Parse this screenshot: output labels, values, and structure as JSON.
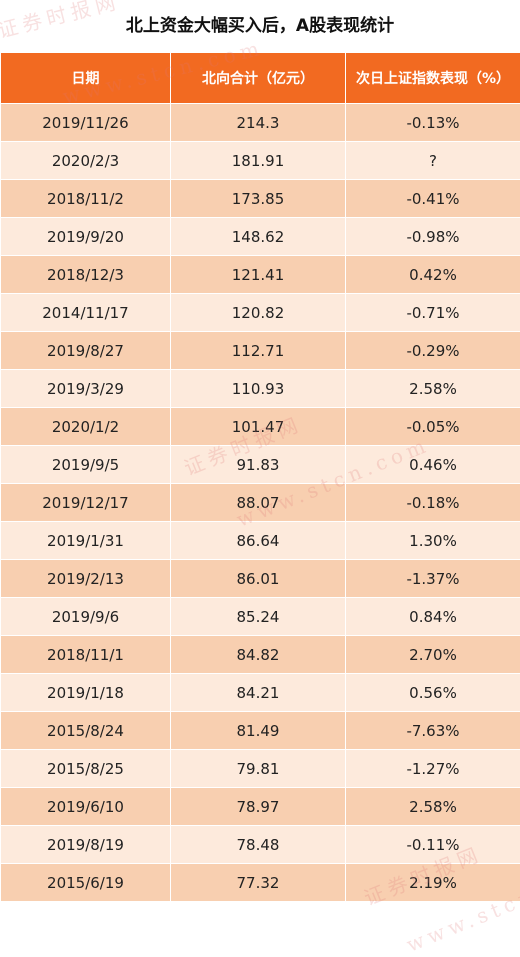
{
  "chart_data": {
    "type": "table",
    "title": "北上资金大幅买入后，A股表现统计",
    "columns": [
      "日期",
      "北向合计（亿元）",
      "次日上证指数表现（%）"
    ],
    "rows": [
      [
        "2019/11/26",
        "214.3",
        "-0.13%"
      ],
      [
        "2020/2/3",
        "181.91",
        "?"
      ],
      [
        "2018/11/2",
        "173.85",
        "-0.41%"
      ],
      [
        "2019/9/20",
        "148.62",
        "-0.98%"
      ],
      [
        "2018/12/3",
        "121.41",
        "0.42%"
      ],
      [
        "2014/11/17",
        "120.82",
        "-0.71%"
      ],
      [
        "2019/8/27",
        "112.71",
        "-0.29%"
      ],
      [
        "2019/3/29",
        "110.93",
        "2.58%"
      ],
      [
        "2020/1/2",
        "101.47",
        "-0.05%"
      ],
      [
        "2019/9/5",
        "91.83",
        "0.46%"
      ],
      [
        "2019/12/17",
        "88.07",
        "-0.18%"
      ],
      [
        "2019/1/31",
        "86.64",
        "1.30%"
      ],
      [
        "2019/2/13",
        "86.01",
        "-1.37%"
      ],
      [
        "2019/9/6",
        "85.24",
        "0.84%"
      ],
      [
        "2018/11/1",
        "84.82",
        "2.70%"
      ],
      [
        "2019/1/18",
        "84.21",
        "0.56%"
      ],
      [
        "2015/8/24",
        "81.49",
        "-7.63%"
      ],
      [
        "2015/8/25",
        "79.81",
        "-1.27%"
      ],
      [
        "2019/6/10",
        "78.97",
        "2.58%"
      ],
      [
        "2019/8/19",
        "78.48",
        "-0.11%"
      ],
      [
        "2015/6/19",
        "77.32",
        "2.19%"
      ]
    ]
  },
  "watermark": {
    "text_cn": "证券时报网",
    "text_url": "www.stcn.com"
  },
  "colors": {
    "header_bg": "#f26a21",
    "header_text": "#ffffff",
    "row_odd_bg": "#f8cfb0",
    "row_even_bg": "#fdeadc"
  }
}
